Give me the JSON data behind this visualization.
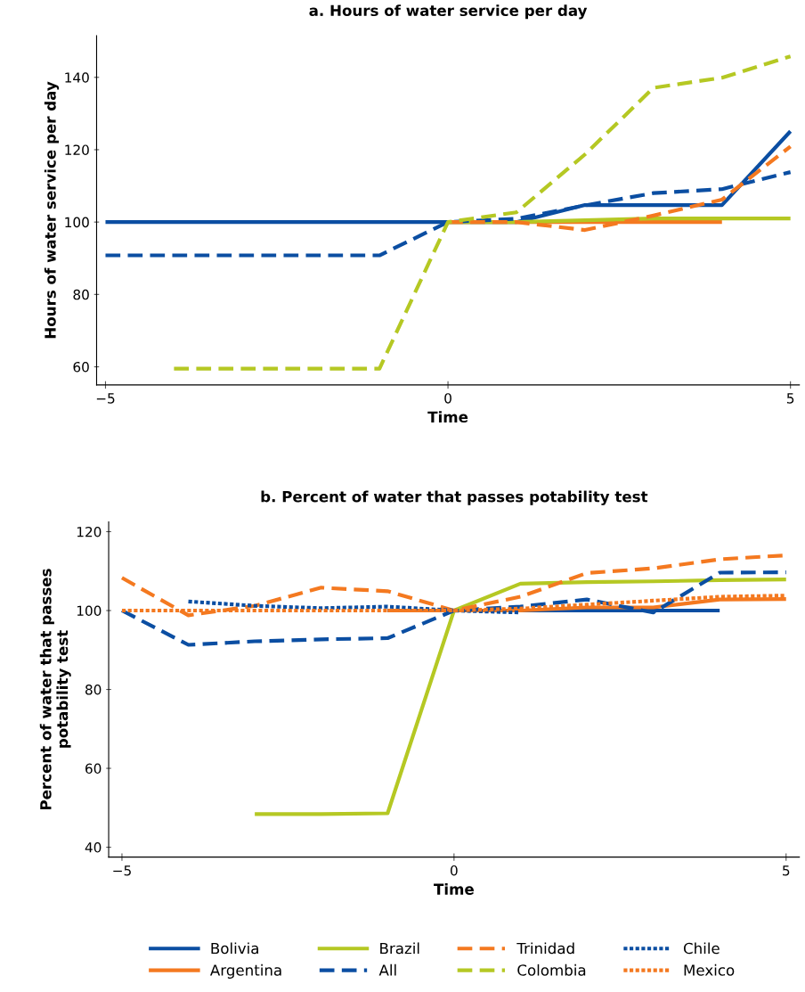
{
  "chart_data": [
    {
      "type": "line",
      "title": "a. Hours of water service per day",
      "xlabel": "Time",
      "ylabel": "Hours of water service per day",
      "xlim": [
        -5.13,
        5.13
      ],
      "ylim": [
        55,
        151.5
      ],
      "xticks": [
        {
          "value": -5,
          "label": "−5"
        },
        0,
        5
      ],
      "yticks": [
        60,
        80,
        100,
        120,
        140
      ],
      "grid": false,
      "legend": "bottom",
      "series": [
        {
          "name": "Bolivia",
          "color": "#0b4ea2",
          "line_style": "solid",
          "x": [
            -5,
            -4,
            -3,
            -2,
            -1,
            0,
            1,
            2,
            3,
            4,
            5
          ],
          "values": [
            100,
            100,
            100,
            100,
            100,
            100,
            100,
            104.7,
            104.7,
            104.7,
            125.1
          ]
        },
        {
          "name": "Argentina",
          "color": "#f47920",
          "line_style": "solid",
          "x": [
            0,
            1,
            2,
            3,
            4
          ],
          "values": [
            100,
            100,
            100,
            100,
            100
          ]
        },
        {
          "name": "Brazil",
          "color": "#b5c823",
          "line_style": "solid",
          "x": [
            0,
            1,
            2,
            3,
            4,
            5
          ],
          "values": [
            100,
            100,
            100.5,
            101,
            101,
            101
          ]
        },
        {
          "name": "All",
          "color": "#0b4ea2",
          "line_style": "dashed",
          "x": [
            -5,
            -4,
            -3,
            -2,
            -1,
            0,
            1,
            2,
            3,
            4,
            5
          ],
          "values": [
            90.8,
            90.8,
            90.8,
            90.8,
            90.8,
            100,
            100.9,
            104.6,
            108,
            109.1,
            113.8
          ]
        },
        {
          "name": "Trinidad",
          "color": "#f47920",
          "line_style": "dashed",
          "x": [
            0,
            1,
            2,
            3,
            4,
            5
          ],
          "values": [
            100,
            100,
            97.8,
            101.8,
            106.2,
            120.9
          ]
        },
        {
          "name": "Colombia",
          "color": "#b5c823",
          "line_style": "dashed",
          "x": [
            -4,
            -3,
            -2,
            -1,
            0,
            1,
            2,
            3,
            4,
            5
          ],
          "values": [
            59.5,
            59.5,
            59.5,
            59.5,
            100,
            102.7,
            118.7,
            137.1,
            139.9,
            145.8
          ]
        }
      ]
    },
    {
      "type": "line",
      "title": "b. Percent of water that passes potability test",
      "xlabel": "Time",
      "ylabel": "Percent of water that passes\npotability test",
      "xlim": [
        -5.2,
        5.2
      ],
      "ylim": [
        37.5,
        122.5
      ],
      "xticks": [
        {
          "value": -5,
          "label": "−5"
        },
        0,
        5
      ],
      "yticks": [
        40,
        60,
        80,
        100,
        120
      ],
      "grid": false,
      "legend": "bottom",
      "series": [
        {
          "name": "Bolivia",
          "color": "#0b4ea2",
          "line_style": "solid",
          "x": [
            -1,
            0,
            1,
            2,
            3,
            4
          ],
          "values": [
            100,
            100,
            100,
            100,
            100,
            100
          ]
        },
        {
          "name": "Argentina",
          "color": "#f47920",
          "line_style": "solid",
          "x": [
            -1,
            0,
            1,
            2,
            3,
            4,
            5
          ],
          "values": [
            100,
            100,
            100,
            100.8,
            100.8,
            102.8,
            102.9
          ]
        },
        {
          "name": "Brazil",
          "color": "#b5c823",
          "line_style": "solid",
          "x": [
            -3,
            -2,
            -1,
            0,
            1,
            2,
            3,
            4,
            5
          ],
          "values": [
            48.4,
            48.4,
            48.6,
            100,
            106.8,
            107.2,
            107.4,
            107.7,
            107.9
          ]
        },
        {
          "name": "All",
          "color": "#0b4ea2",
          "line_style": "dashed",
          "x": [
            -5,
            -4,
            -3,
            -2,
            -1,
            0,
            1,
            2,
            3,
            4,
            5
          ],
          "values": [
            100,
            91.3,
            92.2,
            92.7,
            93,
            100,
            101,
            102.8,
            99.5,
            109.6,
            109.7
          ]
        },
        {
          "name": "Trinidad",
          "color": "#f47920",
          "line_style": "dashed",
          "x": [
            -5,
            -4,
            -3,
            -2,
            -1,
            0,
            1,
            2,
            3,
            4,
            5
          ],
          "values": [
            108.3,
            98.8,
            101.2,
            105.8,
            104.9,
            100,
            103.5,
            109.5,
            110.7,
            113,
            114
          ]
        },
        {
          "name": "Chile",
          "color": "#0b4ea2",
          "line_style": "dotted",
          "x": [
            -4,
            -3,
            -2,
            -1,
            0,
            1
          ],
          "values": [
            102.3,
            101.2,
            100.6,
            101,
            100,
            99.5
          ]
        },
        {
          "name": "Mexico",
          "color": "#f47920",
          "line_style": "dotted",
          "x": [
            -5,
            -4,
            -3,
            -2,
            -1,
            0,
            1,
            2,
            3,
            4,
            5
          ],
          "values": [
            100,
            100,
            100,
            100,
            100,
            100,
            100.5,
            101.5,
            102.5,
            103.5,
            103.8
          ]
        }
      ]
    }
  ]
}
